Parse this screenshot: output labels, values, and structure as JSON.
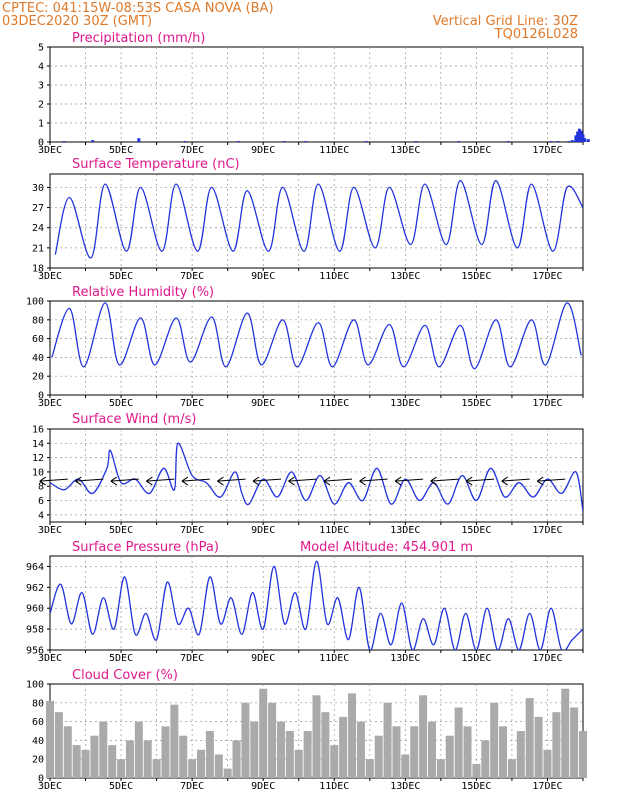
{
  "header": {
    "line1_left": "CPTEC:   041:15W-08:53S  CASA NOVA (BA)",
    "line2_left": "03DEC2020 30Z (GMT)",
    "line1_right": "Vertical Grid Line: 30Z",
    "line2_right": "TQ0126L028"
  },
  "colors": {
    "header": "#e07a2a",
    "title": "#e0188c",
    "line": "#2233dd",
    "cloud": "#aaaaaa"
  },
  "x_ticks": [
    "3DEC",
    "5DEC",
    "7DEC",
    "9DEC",
    "11DEC",
    "13DEC",
    "15DEC",
    "17DEC"
  ],
  "chart_data": [
    {
      "id": "precip",
      "type": "bar",
      "title": "Precipitation (mm/h)",
      "xlabel": "",
      "ylabel": "",
      "ylim": [
        0,
        5
      ],
      "yticks": [
        0,
        1,
        2,
        3,
        4,
        5
      ],
      "grid": true,
      "x_days_from": "3DEC",
      "x_range_days": [
        0,
        15
      ],
      "x": [
        0.4,
        1.2,
        2.5,
        3.8,
        5.3,
        6.6,
        7.2,
        8.9,
        10.3,
        11.5,
        12.9,
        14.1,
        14.3,
        14.6,
        14.7,
        14.8,
        14.85,
        14.9,
        14.95,
        15.0,
        15.05,
        15.15
      ],
      "values": [
        0.05,
        0.1,
        0.2,
        0.05,
        0.05,
        0.05,
        0.05,
        0.05,
        0.05,
        0.05,
        0.05,
        0.05,
        0.05,
        0.05,
        0.1,
        0.35,
        0.55,
        0.7,
        0.6,
        0.4,
        0.2,
        0.15
      ]
    },
    {
      "id": "temp",
      "type": "line",
      "title": "Surface Temperature (nC)",
      "xlabel": "",
      "ylabel": "",
      "ylim": [
        18,
        32
      ],
      "yticks": [
        18,
        21,
        24,
        27,
        30
      ],
      "grid": true,
      "x_days_from": "3DEC",
      "x_range_days": [
        0,
        15
      ],
      "peaks_x": [
        0.55,
        1.55,
        2.55,
        3.55,
        4.55,
        5.55,
        6.55,
        7.55,
        8.55,
        9.55,
        10.55,
        11.55,
        12.55,
        13.55,
        14.55
      ],
      "peaks": [
        28.5,
        30.5,
        30.0,
        30.5,
        30.0,
        29.5,
        30.0,
        30.5,
        30.0,
        30.0,
        30.5,
        31.0,
        31.0,
        30.5,
        30.0
      ],
      "troughs_x": [
        0.15,
        1.15,
        2.15,
        3.15,
        4.15,
        5.15,
        6.15,
        7.15,
        8.15,
        9.15,
        10.15,
        11.15,
        12.15,
        13.15,
        14.15,
        15.0
      ],
      "troughs": [
        20.0,
        19.5,
        20.5,
        20.5,
        20.5,
        20.5,
        20.5,
        20.5,
        20.5,
        21.0,
        21.5,
        21.5,
        21.5,
        21.0,
        20.5,
        27.0
      ]
    },
    {
      "id": "rh",
      "type": "line",
      "title": "Relative Humidity (%)",
      "xlabel": "",
      "ylabel": "",
      "ylim": [
        0,
        100
      ],
      "yticks": [
        0,
        20,
        40,
        60,
        80,
        100
      ],
      "grid": true,
      "x_days_from": "3DEC",
      "x_range_days": [
        0,
        15
      ],
      "peaks_x": [
        0.55,
        1.55,
        2.55,
        3.55,
        4.55,
        5.55,
        6.55,
        7.55,
        8.55,
        9.55,
        10.55,
        11.55,
        12.55,
        13.55,
        14.55
      ],
      "peaks": [
        92,
        98,
        82,
        82,
        83,
        87,
        80,
        77,
        80,
        75,
        74,
        74,
        80,
        80,
        98
      ],
      "troughs_x": [
        0.05,
        0.95,
        1.95,
        2.95,
        3.95,
        4.95,
        5.95,
        6.95,
        7.95,
        8.95,
        9.95,
        10.95,
        11.95,
        12.95,
        13.95,
        14.95
      ],
      "troughs": [
        40,
        30,
        32,
        32,
        35,
        30,
        32,
        30,
        30,
        32,
        30,
        30,
        28,
        30,
        32,
        42
      ]
    },
    {
      "id": "wind",
      "type": "line",
      "title": "Surface Wind (m/s)",
      "xlabel": "",
      "ylabel": "",
      "ylim": [
        3,
        16
      ],
      "yticks": [
        4,
        6,
        8,
        10,
        12,
        14,
        16
      ],
      "grid": true,
      "x_days_from": "3DEC",
      "x_range_days": [
        0,
        15
      ],
      "x": [
        0,
        0.4,
        0.8,
        1.2,
        1.6,
        1.7,
        2.0,
        2.4,
        2.8,
        3.2,
        3.5,
        3.6,
        4.0,
        4.4,
        4.8,
        5.2,
        5.4,
        5.6,
        6.0,
        6.4,
        6.8,
        7.2,
        7.6,
        8.0,
        8.4,
        8.8,
        9.2,
        9.6,
        10.0,
        10.4,
        10.8,
        11.2,
        11.6,
        12.0,
        12.4,
        12.8,
        13.2,
        13.6,
        14.0,
        14.4,
        14.8,
        15.0
      ],
      "values": [
        8.5,
        7.5,
        9.0,
        7.0,
        10.5,
        13.0,
        8.5,
        9.0,
        7.0,
        10.5,
        7.5,
        14.0,
        9.5,
        8.5,
        6.5,
        10.0,
        7.0,
        5.5,
        9.0,
        6.5,
        10.0,
        6.0,
        9.5,
        5.5,
        8.5,
        6.0,
        10.5,
        5.5,
        9.0,
        6.0,
        8.5,
        5.5,
        9.5,
        6.0,
        10.5,
        6.5,
        8.5,
        6.5,
        9.0,
        7.0,
        10.0,
        4.5
      ],
      "arrows_x": [
        0.5,
        1.5,
        2.5,
        3.5,
        4.5,
        5.5,
        6.5,
        7.5,
        8.5,
        9.5,
        10.5,
        11.5,
        12.5,
        13.5,
        14.5
      ]
    },
    {
      "id": "pres",
      "type": "line",
      "title": "Surface Pressure (hPa)",
      "subtitle": "Model Altitude: 454.901 m",
      "xlabel": "",
      "ylabel": "",
      "ylim": [
        956,
        965
      ],
      "yticks": [
        956,
        958,
        960,
        962,
        964
      ],
      "grid": true,
      "x_days_from": "3DEC",
      "x_range_days": [
        0,
        15
      ],
      "x": [
        0,
        0.3,
        0.6,
        0.9,
        1.2,
        1.5,
        1.8,
        2.1,
        2.4,
        2.7,
        3.0,
        3.3,
        3.6,
        3.9,
        4.2,
        4.5,
        4.8,
        5.1,
        5.4,
        5.7,
        6.0,
        6.3,
        6.6,
        6.9,
        7.2,
        7.5,
        7.8,
        8.1,
        8.4,
        8.7,
        9.0,
        9.3,
        9.6,
        9.9,
        10.2,
        10.5,
        10.8,
        11.1,
        11.4,
        11.7,
        12.0,
        12.3,
        12.6,
        12.9,
        13.2,
        13.5,
        13.8,
        14.1,
        14.4,
        14.7,
        15.0
      ],
      "values": [
        959.5,
        962.3,
        958.5,
        961.5,
        957.5,
        961.0,
        958.0,
        963.0,
        957.5,
        959.5,
        957.0,
        962.5,
        958.5,
        960.0,
        957.5,
        963.0,
        958.5,
        961.0,
        957.5,
        961.5,
        958.0,
        964.0,
        958.5,
        961.5,
        958.0,
        964.5,
        958.5,
        961.0,
        957.0,
        962.0,
        956.0,
        959.5,
        956.5,
        960.5,
        956.0,
        959.0,
        956.5,
        960.0,
        955.5,
        959.5,
        956.0,
        960.0,
        955.5,
        959.0,
        956.0,
        959.5,
        956.0,
        960.0,
        956.0,
        957.0,
        958.0
      ]
    },
    {
      "id": "cloud",
      "type": "bar",
      "title": "Cloud Cover (%)",
      "xlabel": "",
      "ylabel": "",
      "ylim": [
        0,
        100
      ],
      "yticks": [
        0,
        20,
        40,
        60,
        80,
        100
      ],
      "grid": true,
      "x_days_from": "3DEC",
      "x_range_days": [
        0,
        15
      ],
      "x": [
        0,
        0.25,
        0.5,
        0.75,
        1.0,
        1.25,
        1.5,
        1.75,
        2.0,
        2.25,
        2.5,
        2.75,
        3.0,
        3.25,
        3.5,
        3.75,
        4.0,
        4.25,
        4.5,
        4.75,
        5.0,
        5.25,
        5.5,
        5.75,
        6.0,
        6.25,
        6.5,
        6.75,
        7.0,
        7.25,
        7.5,
        7.75,
        8.0,
        8.25,
        8.5,
        8.75,
        9.0,
        9.25,
        9.5,
        9.75,
        10.0,
        10.25,
        10.5,
        10.75,
        11.0,
        11.25,
        11.5,
        11.75,
        12.0,
        12.25,
        12.5,
        12.75,
        13.0,
        13.25,
        13.5,
        13.75,
        14.0,
        14.25,
        14.5,
        14.75,
        15.0
      ],
      "values": [
        82,
        70,
        55,
        35,
        30,
        45,
        60,
        35,
        20,
        40,
        60,
        40,
        20,
        55,
        78,
        45,
        20,
        30,
        50,
        25,
        10,
        40,
        80,
        60,
        95,
        80,
        60,
        50,
        30,
        50,
        88,
        70,
        35,
        65,
        90,
        60,
        20,
        45,
        80,
        55,
        25,
        55,
        88,
        60,
        20,
        45,
        75,
        55,
        15,
        40,
        80,
        55,
        20,
        50,
        85,
        65,
        30,
        70,
        95,
        75,
        50
      ]
    }
  ]
}
